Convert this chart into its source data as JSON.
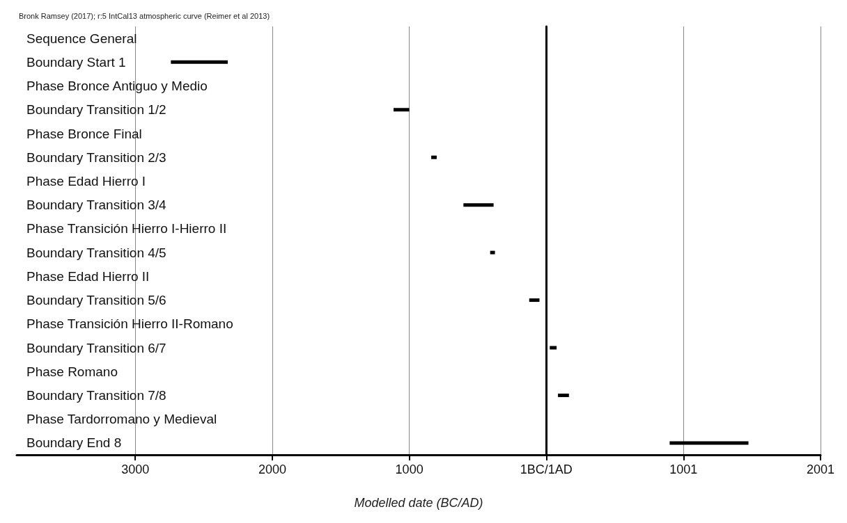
{
  "chart_data": {
    "type": "bar",
    "orientation": "horizontal",
    "title": "Bronk Ramsey (2017); r:5 IntCal13 atmospheric curve (Reimer et al 2013)",
    "xlabel": "Modelled date (BC/AD)",
    "categories": [
      "Sequence General",
      "Boundary Start 1",
      "Phase Bronce Antiguo y Medio",
      "Boundary Transition 1/2",
      "Phase Bronce Final",
      "Boundary Transition 2/3",
      "Phase Edad Hierro I",
      "Boundary Transition 3/4",
      "Phase Transición Hierro I-Hierro II",
      "Boundary Transition 4/5",
      "Phase Edad Hierro II",
      "Boundary Transition 5/6",
      "Phase Transición Hierro II-Romano",
      "Boundary Transition 6/7",
      "Phase Romano",
      "Boundary Transition 7/8",
      "Phase Tardorromano y Medieval",
      "Boundary End 8"
    ],
    "base": [
      null,
      -2740,
      null,
      -1115,
      null,
      -840,
      null,
      -605,
      null,
      -410,
      null,
      -125,
      null,
      25,
      null,
      85,
      null,
      900
    ],
    "values": [
      null,
      415,
      null,
      115,
      null,
      40,
      null,
      220,
      null,
      35,
      null,
      75,
      null,
      50,
      null,
      80,
      null,
      575
    ],
    "color": "#000000",
    "xlim": [
      -3865,
      2001
    ],
    "xticks": [
      {
        "value": -3000,
        "label": "3000"
      },
      {
        "value": -2000,
        "label": "2000"
      },
      {
        "value": -1000,
        "label": "1000"
      },
      {
        "value": 0,
        "label": "1BC/1AD"
      },
      1001,
      2001
    ],
    "grid": "x"
  }
}
